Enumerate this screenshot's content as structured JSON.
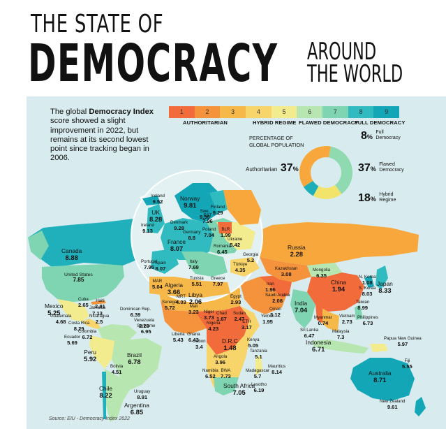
{
  "title": {
    "line1": "THE STATE OF",
    "line2": "DEMOCRACY",
    "line3a": "AROUND",
    "line3b": "THE WORLD"
  },
  "intro": {
    "prefix": "The global ",
    "bold": "Democracy Index",
    "rest": " score showed a slight improvement in 2022, but remains at its second lowest point since tracking began in 2006."
  },
  "legend": {
    "scale": [
      "1",
      "2",
      "3",
      "4",
      "5",
      "6",
      "7",
      "8",
      "9"
    ],
    "colors": [
      "#f26b3a",
      "#f5933d",
      "#f7b84a",
      "#f7d56a",
      "#f3ec8e",
      "#b8e6b0",
      "#7fd4b2",
      "#2fbbc0",
      "#13a6b6"
    ],
    "categories": [
      "AUTHORITARIAN",
      "HYBRID REGIME",
      "FLAWED DEMOCRACY",
      "FULL DEMOCRACY"
    ]
  },
  "population": {
    "title_line1": "PERCENTAGE OF",
    "title_line2": "GLOBAL POPULATION",
    "slices": [
      {
        "label": "Authoritarian",
        "value": 37,
        "color": "#f7a73c"
      },
      {
        "label": "Flawed Democracy",
        "value": 37,
        "color": "#8fdab0"
      },
      {
        "label": "Hybrid Regime",
        "value": 18,
        "color": "#f2e46a"
      },
      {
        "label": "Full Democracy",
        "value": 8,
        "color": "#1eaeb8"
      }
    ],
    "labels": {
      "auth_name": "Authoritarian",
      "auth_pct": "37",
      "full_pct": "8",
      "full_l1": "Full",
      "full_l2": "Democracy",
      "flawed_pct": "37",
      "flawed_l1": "Flawed",
      "flawed_l2": "Democracy",
      "hybrid_pct": "18",
      "hybrid_l1": "Hybrid",
      "hybrid_l2": "Regime",
      "pct_sign": "%"
    }
  },
  "countries": [
    {
      "name": "Canada",
      "score": "8.88"
    },
    {
      "name": "United States",
      "score": "7.85"
    },
    {
      "name": "Mexico",
      "score": "5.25"
    },
    {
      "name": "Cuba",
      "score": "2.65"
    },
    {
      "name": "Haiti",
      "score": "2.81"
    },
    {
      "name": "Jamaica",
      "score": "7.13"
    },
    {
      "name": "Dominican Rep.",
      "score": "6.39"
    },
    {
      "name": "Guatemala",
      "score": "4.68"
    },
    {
      "name": "Nicaragua",
      "score": "2.5"
    },
    {
      "name": "Costa Rica",
      "score": "8.29"
    },
    {
      "name": "Venezuela",
      "score": "2.23"
    },
    {
      "name": "Suriname",
      "score": "6.95"
    },
    {
      "name": "Colombia",
      "score": "6.72"
    },
    {
      "name": "Ecuador",
      "score": "5.69"
    },
    {
      "name": "Peru",
      "score": "5.92"
    },
    {
      "name": "Brazil",
      "score": "6.78"
    },
    {
      "name": "Bolivia",
      "score": "4.51"
    },
    {
      "name": "Chile",
      "score": "8.22"
    },
    {
      "name": "Uruguay",
      "score": "8.91"
    },
    {
      "name": "Argentina",
      "score": "6.85"
    },
    {
      "name": "Iceland",
      "score": "9.52"
    },
    {
      "name": "Norway",
      "score": "9.81"
    },
    {
      "name": "Swe.",
      "score": "9.39"
    },
    {
      "name": "Finland",
      "score": "9.29"
    },
    {
      "name": "UK",
      "score": "8.28"
    },
    {
      "name": "Ireland",
      "score": "9.13"
    },
    {
      "name": "Denmark",
      "score": "9.28"
    },
    {
      "name": "EST",
      "score": "7.96"
    },
    {
      "name": "Germany",
      "score": "8.8"
    },
    {
      "name": "Poland",
      "score": "7.04"
    },
    {
      "name": "BLR",
      "score": "1.99"
    },
    {
      "name": "France",
      "score": "8.07"
    },
    {
      "name": "Ukraine",
      "score": "5.42"
    },
    {
      "name": "Romania",
      "score": "6.45"
    },
    {
      "name": "Portugal",
      "score": "7.95"
    },
    {
      "name": "Spain",
      "score": "8.07"
    },
    {
      "name": "Italy",
      "score": "7.69"
    },
    {
      "name": "Georgia",
      "score": "5.2"
    },
    {
      "name": "Türkiye",
      "score": "4.35"
    },
    {
      "name": "Tunisia",
      "score": "5.51"
    },
    {
      "name": "Greece",
      "score": "7.97"
    },
    {
      "name": "MAR",
      "score": "5.04"
    },
    {
      "name": "Algeria",
      "score": "3.66"
    },
    {
      "name": "Libya",
      "score": "2.06"
    },
    {
      "name": "Egypt",
      "score": "2.93"
    },
    {
      "name": "Russia",
      "score": "2.28"
    },
    {
      "name": "Kazakhstan",
      "score": "3.08"
    },
    {
      "name": "Mongolia",
      "score": "6.35"
    },
    {
      "name": "China",
      "score": "1.94"
    },
    {
      "name": "N. Korea",
      "score": "1.08"
    },
    {
      "name": "S. Korea",
      "score": "8.03"
    },
    {
      "name": "Japan",
      "score": "8.33"
    },
    {
      "name": "Taiwan",
      "score": "8.99"
    },
    {
      "name": "Iran",
      "score": "1.96"
    },
    {
      "name": "Saudi Arabia",
      "score": "2.08"
    },
    {
      "name": "Oman",
      "score": "3.12"
    },
    {
      "name": "Yemen",
      "score": "1.95"
    },
    {
      "name": "India",
      "score": "7.04"
    },
    {
      "name": "Myanmar",
      "score": "0.74"
    },
    {
      "name": "Vietnam",
      "score": "2.73"
    },
    {
      "name": "Philippines",
      "score": "6.73"
    },
    {
      "name": "Sri Lanka",
      "score": "6.47"
    },
    {
      "name": "Malaysia",
      "score": "7.3"
    },
    {
      "name": "Indonesia",
      "score": "6.71"
    },
    {
      "name": "Papua New Guinea",
      "score": "5.97"
    },
    {
      "name": "Fiji",
      "score": "5.55"
    },
    {
      "name": "Australia",
      "score": "8.71"
    },
    {
      "name": "New Zealand",
      "score": "9.61"
    },
    {
      "name": "Senegal",
      "score": "5.72"
    },
    {
      "name": "MRT",
      "score": "4.03"
    },
    {
      "name": "Mali",
      "score": "3.23"
    },
    {
      "name": "Niger",
      "score": "3.73"
    },
    {
      "name": "Chad",
      "score": "1.67"
    },
    {
      "name": "Sudan",
      "score": "2.47"
    },
    {
      "name": "Liberia",
      "score": "5.43"
    },
    {
      "name": "Ghana",
      "score": "6.43"
    },
    {
      "name": "Nigeria",
      "score": "4.23"
    },
    {
      "name": "ETH",
      "score": "3.17"
    },
    {
      "name": "Gabon",
      "score": "3.4"
    },
    {
      "name": "D.R.C",
      "score": "1.48"
    },
    {
      "name": "Kenya",
      "score": "5.05"
    },
    {
      "name": "Tanzania",
      "score": "5.1"
    },
    {
      "name": "Angola",
      "score": "3.96"
    },
    {
      "name": "Namibia",
      "score": "6.52"
    },
    {
      "name": "BWA",
      "score": "7.73"
    },
    {
      "name": "Madagascar",
      "score": "5.7"
    },
    {
      "name": "Mauritius",
      "score": "8.14"
    },
    {
      "name": "South Africa",
      "score": "7.05"
    },
    {
      "name": "Lesotho",
      "score": "6.19"
    }
  ],
  "source": "Source: EIU - Democracy Index 2022"
}
